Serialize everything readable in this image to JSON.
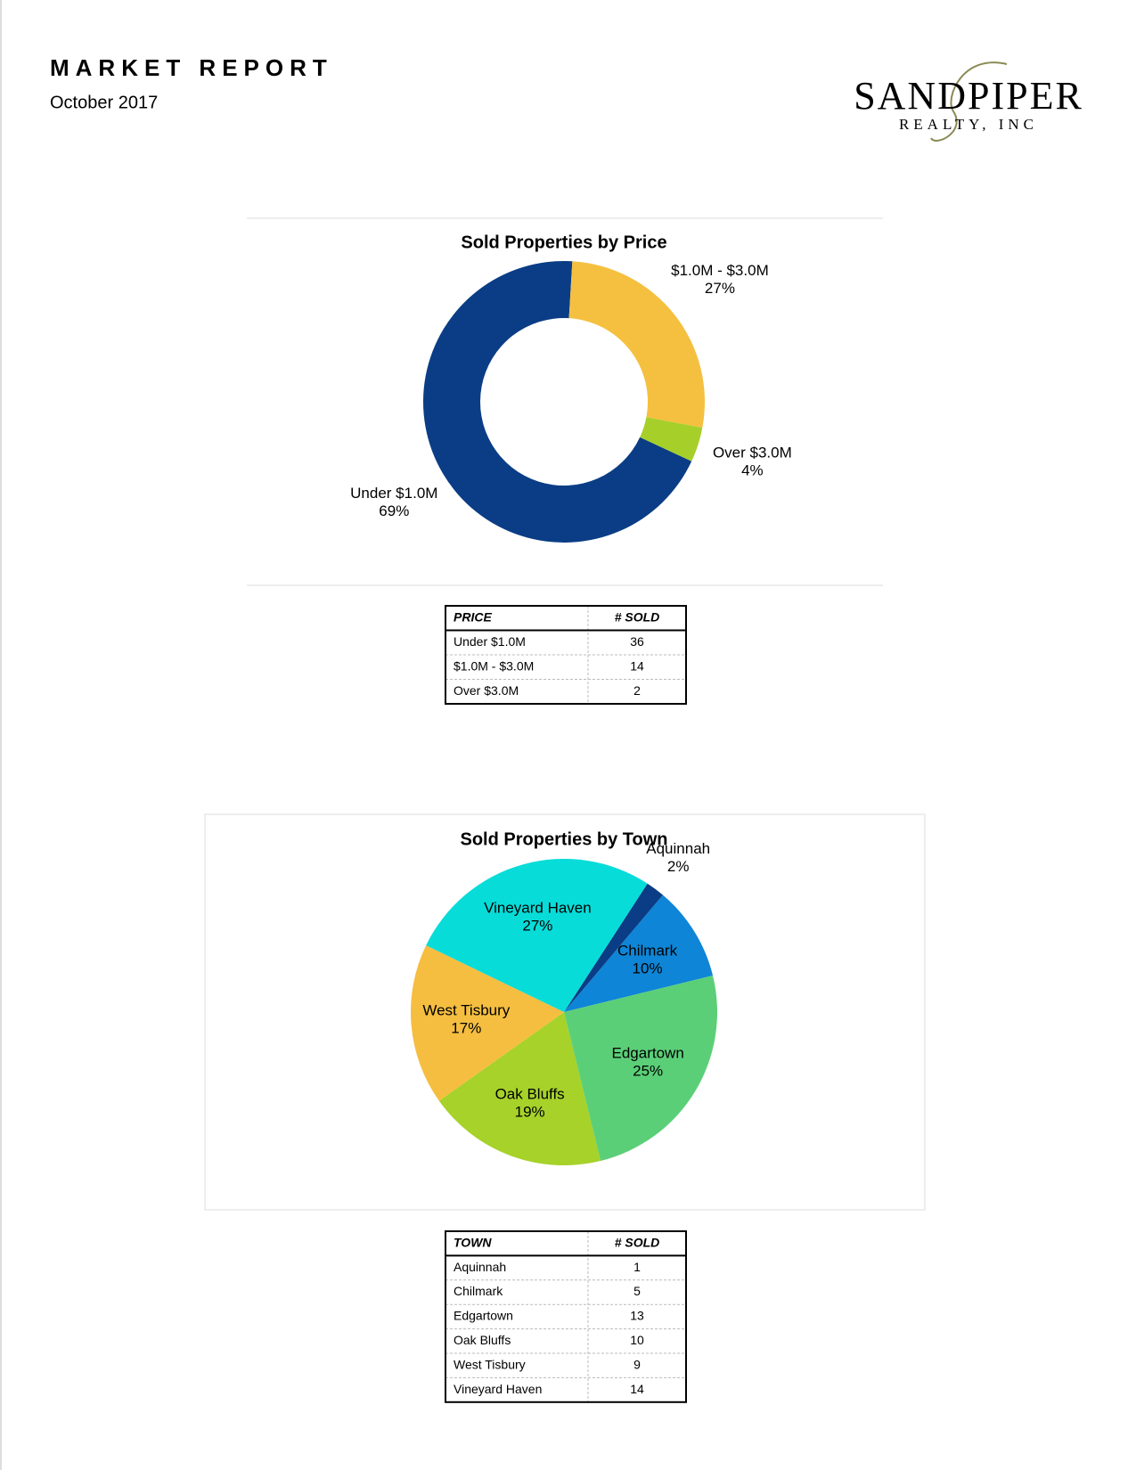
{
  "header": {
    "title": "MARKET REPORT",
    "date": "October 2017",
    "logo": {
      "name": "SANDPIPER",
      "tagline": "REALTY, INC"
    }
  },
  "chart_data": [
    {
      "type": "donut",
      "title": "Sold Properties by Price",
      "categories": [
        "Under $1.0M",
        "$1.0M - $3.0M",
        "Over $3.0M"
      ],
      "values": [
        69,
        27,
        4
      ],
      "value_labels": [
        "69%",
        "27%",
        "4%"
      ],
      "colors": [
        "#0a3d85",
        "#f5c040",
        "#a6cf2a"
      ]
    },
    {
      "type": "pie",
      "title": "Sold Properties by Town",
      "categories": [
        "Aquinnah",
        "Chilmark",
        "Edgartown",
        "Oak Bluffs",
        "West Tisbury",
        "Vineyard Haven"
      ],
      "values": [
        2,
        10,
        25,
        19,
        17,
        27
      ],
      "value_labels": [
        "2%",
        "10%",
        "25%",
        "19%",
        "17%",
        "27%"
      ],
      "colors": [
        "#0a3d85",
        "#0e85d6",
        "#5bcf78",
        "#a6d22a",
        "#f5be40",
        "#08dcd8"
      ]
    }
  ],
  "tables": [
    {
      "headers": [
        "PRICE",
        "# SOLD"
      ],
      "rows": [
        [
          "Under $1.0M",
          36
        ],
        [
          "$1.0M - $3.0M",
          14
        ],
        [
          "Over $3.0M",
          2
        ]
      ]
    },
    {
      "headers": [
        "TOWN",
        "# SOLD"
      ],
      "rows": [
        [
          "Aquinnah",
          1
        ],
        [
          "Chilmark",
          5
        ],
        [
          "Edgartown",
          13
        ],
        [
          "Oak Bluffs",
          10
        ],
        [
          "West Tisbury",
          9
        ],
        [
          "Vineyard Haven",
          14
        ]
      ]
    }
  ]
}
